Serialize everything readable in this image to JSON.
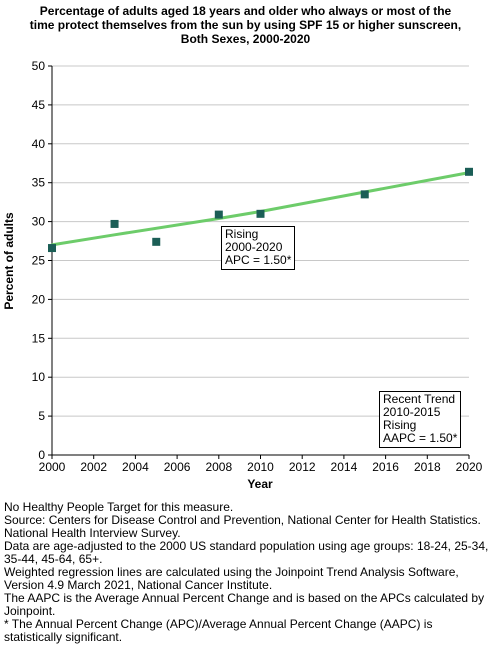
{
  "chart_data": {
    "type": "line",
    "title_lines": [
      "Percentage of adults aged 18 years and older who always or most of the",
      "time protect themselves from the sun by using SPF 15 or higher sunscreen,",
      "Both Sexes,  2000-2020"
    ],
    "xlabel": "Year",
    "ylabel": "Percent of adults",
    "xlim": [
      2000,
      2020
    ],
    "ylim": [
      0,
      50
    ],
    "x_ticks": [
      2000,
      2002,
      2004,
      2006,
      2008,
      2010,
      2012,
      2014,
      2016,
      2018,
      2020
    ],
    "y_ticks": [
      0,
      5,
      10,
      15,
      20,
      25,
      30,
      35,
      40,
      45,
      50
    ],
    "grid": "horizontal",
    "series": [
      {
        "kind": "observed",
        "marker": "square",
        "color": "#1b5e56",
        "x": [
          2000,
          2003,
          2005,
          2008,
          2010,
          2015,
          2020
        ],
        "y": [
          26.6,
          29.7,
          27.4,
          30.9,
          31.0,
          33.5,
          36.4
        ]
      },
      {
        "kind": "regression",
        "color": "#6dcc6a",
        "x": [
          2000,
          2003,
          2008,
          2010,
          2015,
          2020
        ],
        "y": [
          27.0,
          28.3,
          30.4,
          31.3,
          33.8,
          36.3
        ]
      }
    ],
    "annotations": [
      {
        "lines": [
          "Rising",
          "2000-2020",
          "APC =  1.50*"
        ]
      },
      {
        "lines": [
          "Recent Trend",
          "2010-2015",
          "Rising",
          "AAPC =  1.50*"
        ]
      }
    ],
    "footnotes": [
      "No Healthy People Target for this measure.",
      "Source: Centers for Disease Control and Prevention, National Center for Health Statistics. National Health Interview Survey.",
      "Data are age-adjusted to the 2000 US standard population using age groups: 18-24, 25-34, 35-44, 45-64, 65+.",
      "Weighted regression lines are calculated using the Joinpoint Trend Analysis Software, Version 4.9 March 2021, National Cancer Institute.",
      "The AAPC is the Average Annual Percent Change and is based on the APCs calculated by Joinpoint.",
      "* The Annual Percent Change (APC)/Average Annual Percent Change (AAPC) is statistically significant."
    ]
  }
}
